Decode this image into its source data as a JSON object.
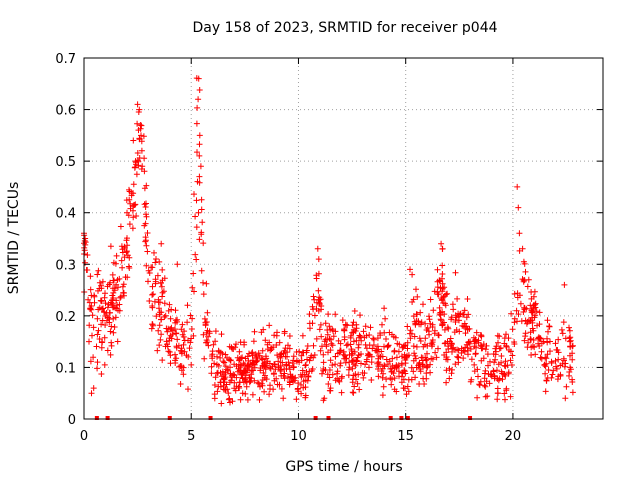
{
  "chart_data": {
    "type": "scatter",
    "title": "Day 158 of 2023, SRMTID for receiver p044",
    "xlabel": "GPS time / hours",
    "ylabel": "SRMTID / TECUs",
    "xlim": [
      0,
      24.2
    ],
    "ylim": [
      0,
      0.7
    ],
    "xticks": [
      0,
      5,
      10,
      15,
      20
    ],
    "xtick_labels": [
      "0",
      "5",
      "10",
      "15",
      "20"
    ],
    "yticks": [
      0,
      0.1,
      0.2,
      0.3,
      0.4,
      0.5,
      0.6,
      0.7
    ],
    "ytick_labels": [
      "0",
      "0.1",
      "0.2",
      "0.3",
      "0.4",
      "0.5",
      "0.6",
      "0.7"
    ],
    "grid": true,
    "marker": "+",
    "color": "#ff0000",
    "series": [
      {
        "name": "SRMTID",
        "profile": [
          [
            0.0,
            0.3,
            0.06
          ],
          [
            0.05,
            0.34,
            0.03
          ],
          [
            0.3,
            0.18,
            0.06
          ],
          [
            0.6,
            0.2,
            0.07
          ],
          [
            1.0,
            0.2,
            0.07
          ],
          [
            1.5,
            0.25,
            0.06
          ],
          [
            2.0,
            0.32,
            0.07
          ],
          [
            2.3,
            0.42,
            0.07
          ],
          [
            2.6,
            0.55,
            0.06
          ],
          [
            2.8,
            0.45,
            0.07
          ],
          [
            3.0,
            0.28,
            0.06
          ],
          [
            3.5,
            0.22,
            0.07
          ],
          [
            4.0,
            0.16,
            0.05
          ],
          [
            4.5,
            0.13,
            0.05
          ],
          [
            5.0,
            0.15,
            0.05
          ],
          [
            5.2,
            0.38,
            0.12
          ],
          [
            5.4,
            0.5,
            0.15
          ],
          [
            5.6,
            0.2,
            0.06
          ],
          [
            5.9,
            0.12,
            0.05
          ],
          [
            6.5,
            0.08,
            0.04
          ],
          [
            7.0,
            0.09,
            0.04
          ],
          [
            8.0,
            0.1,
            0.04
          ],
          [
            9.0,
            0.11,
            0.05
          ],
          [
            10.0,
            0.1,
            0.04
          ],
          [
            10.5,
            0.12,
            0.05
          ],
          [
            10.9,
            0.24,
            0.07
          ],
          [
            11.2,
            0.11,
            0.05
          ],
          [
            12.0,
            0.13,
            0.05
          ],
          [
            13.0,
            0.13,
            0.05
          ],
          [
            14.0,
            0.13,
            0.05
          ],
          [
            14.8,
            0.1,
            0.04
          ],
          [
            15.3,
            0.15,
            0.07
          ],
          [
            16.0,
            0.12,
            0.05
          ],
          [
            16.7,
            0.25,
            0.08
          ],
          [
            17.0,
            0.13,
            0.05
          ],
          [
            17.5,
            0.19,
            0.07
          ],
          [
            18.0,
            0.13,
            0.05
          ],
          [
            19.0,
            0.1,
            0.04
          ],
          [
            19.6,
            0.1,
            0.04
          ],
          [
            20.0,
            0.15,
            0.06
          ],
          [
            20.3,
            0.3,
            0.08
          ],
          [
            20.6,
            0.2,
            0.06
          ],
          [
            21.0,
            0.18,
            0.05
          ],
          [
            21.5,
            0.13,
            0.05
          ],
          [
            22.0,
            0.12,
            0.05
          ],
          [
            22.8,
            0.12,
            0.05
          ]
        ],
        "spikes": [
          [
            2.5,
            0.61
          ],
          [
            2.58,
            0.6
          ],
          [
            2.63,
            0.57
          ],
          [
            2.66,
            0.55
          ],
          [
            2.3,
            0.54
          ],
          [
            2.4,
            0.5
          ],
          [
            2.7,
            0.52
          ],
          [
            5.35,
            0.66
          ],
          [
            5.32,
            0.62
          ],
          [
            5.4,
            0.55
          ],
          [
            5.45,
            0.49
          ],
          [
            5.38,
            0.47
          ],
          [
            5.34,
            0.4
          ],
          [
            20.2,
            0.45
          ],
          [
            20.25,
            0.41
          ],
          [
            20.3,
            0.36
          ],
          [
            20.45,
            0.33
          ],
          [
            16.65,
            0.34
          ],
          [
            16.72,
            0.33
          ],
          [
            10.9,
            0.33
          ],
          [
            10.95,
            0.31
          ],
          [
            15.2,
            0.29
          ],
          [
            15.3,
            0.28
          ],
          [
            4.35,
            0.3
          ],
          [
            3.6,
            0.34
          ],
          [
            0.0,
            0.36
          ],
          [
            0.05,
            0.35
          ],
          [
            22.4,
            0.26
          ],
          [
            0.35,
            0.05
          ],
          [
            0.45,
            0.06
          ],
          [
            6.4,
            0.03
          ],
          [
            6.1,
            0.04
          ],
          [
            11.5,
            0.06
          ],
          [
            14.9,
            0.06
          ],
          [
            19.3,
            0.05
          ]
        ]
      }
    ],
    "gaps_at_zero": [
      0.6,
      1.1,
      4.0,
      5.9,
      10.8,
      11.4,
      14.3,
      14.8,
      15.1,
      18.0
    ]
  }
}
